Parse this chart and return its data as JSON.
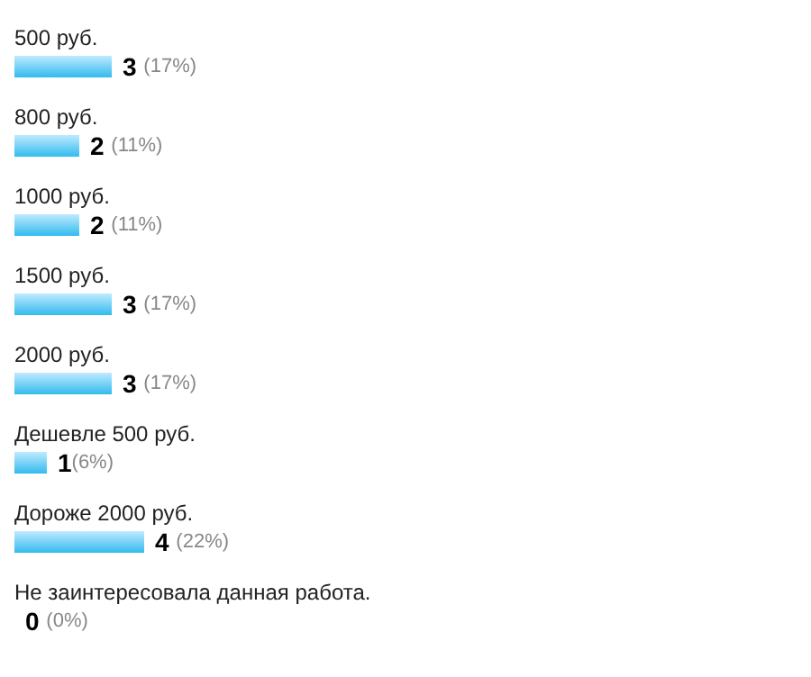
{
  "chart_data": {
    "type": "bar",
    "orientation": "horizontal",
    "categories": [
      "500 руб.",
      "800 руб.",
      "1000 руб.",
      "1500 руб.",
      "2000 руб.",
      "Дешевле 500 руб.",
      "Дороже 2000 руб.",
      "Не заинтересовала данная работа."
    ],
    "values": [
      3,
      2,
      2,
      3,
      3,
      1,
      4,
      0
    ],
    "value_labels": [
      "3 (17%)",
      "2 (11%)",
      "2 (11%)",
      "3 (17%)",
      "3 (17%)",
      "1(6%)",
      "4 (22%)",
      "0 (0%)"
    ],
    "color": "#33bbee",
    "grid": false,
    "tick_labels": "y"
  }
}
